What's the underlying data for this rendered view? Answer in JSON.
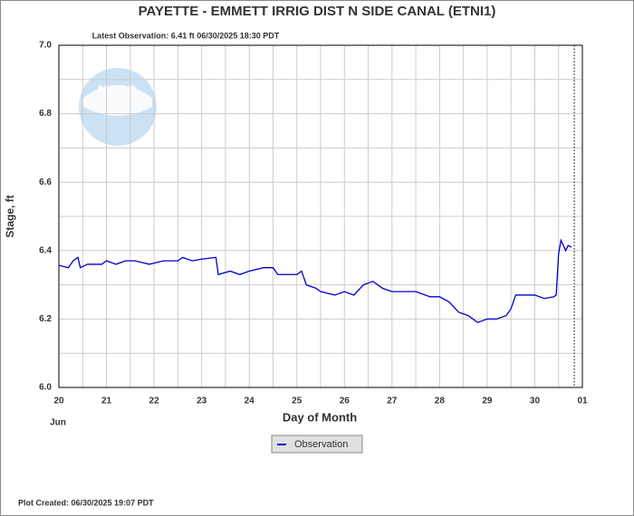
{
  "chart_data": {
    "type": "line",
    "title": "PAYETTE - EMMETT IRRIG DIST N SIDE CANAL  (ETNI1)",
    "subtitle": "Latest Observation: 6.41 ft 06/30/2025 18:30 PDT",
    "y_label": "Stage, ft",
    "x_label": "Day of Month",
    "x_month_label": "Jun",
    "footer": "Plot Created: 06/30/2025 19:07 PDT",
    "logo_text": "NOAA",
    "xlim": [
      20,
      31
    ],
    "xticks": [
      20,
      21,
      22,
      23,
      24,
      25,
      26,
      27,
      28,
      29,
      30,
      {
        "value": 31,
        "label": "01"
      }
    ],
    "x_minor_ticks": [
      20.5,
      21.5,
      22.5,
      23.5,
      24.5,
      25.5,
      26.5,
      27.5,
      28.5,
      29.5,
      30.5
    ],
    "ylim": [
      6.0,
      7.0
    ],
    "yticks": [
      {
        "value": 6.0,
        "label": "6.0"
      },
      6.2,
      6.4,
      6.6,
      6.8,
      {
        "value": 7.0,
        "label": "7.0"
      }
    ],
    "y_minor_ticks": [
      6.1,
      6.3,
      6.5,
      6.7,
      6.9
    ],
    "grid": true,
    "now_line_x": 30.83,
    "legend": "bottom-center",
    "x": [
      20.0,
      20.2,
      20.3,
      20.4,
      20.45,
      20.6,
      20.9,
      21.0,
      21.2,
      21.4,
      21.6,
      21.9,
      22.2,
      22.5,
      22.6,
      22.8,
      23.0,
      23.3,
      23.35,
      23.6,
      23.8,
      24.0,
      24.3,
      24.5,
      24.6,
      24.8,
      25.0,
      25.1,
      25.2,
      25.4,
      25.5,
      25.8,
      26.0,
      26.2,
      26.4,
      26.6,
      26.8,
      27.0,
      27.3,
      27.5,
      27.8,
      28.0,
      28.2,
      28.4,
      28.6,
      28.8,
      29.0,
      29.2,
      29.4,
      29.5,
      29.6,
      30.0,
      30.2,
      30.4,
      30.45,
      30.5,
      30.55,
      30.65,
      30.7,
      30.77
    ],
    "series": [
      {
        "name": "Observation",
        "color": "#0000cc",
        "values": [
          6.357,
          6.35,
          6.37,
          6.38,
          6.35,
          6.36,
          6.36,
          6.37,
          6.36,
          6.37,
          6.37,
          6.36,
          6.37,
          6.37,
          6.38,
          6.37,
          6.375,
          6.38,
          6.33,
          6.34,
          6.33,
          6.34,
          6.35,
          6.35,
          6.33,
          6.33,
          6.33,
          6.34,
          6.3,
          6.29,
          6.28,
          6.27,
          6.28,
          6.27,
          6.3,
          6.31,
          6.29,
          6.28,
          6.28,
          6.28,
          6.265,
          6.265,
          6.25,
          6.22,
          6.21,
          6.19,
          6.2,
          6.2,
          6.21,
          6.23,
          6.27,
          6.27,
          6.26,
          6.265,
          6.27,
          6.39,
          6.43,
          6.4,
          6.415,
          6.41
        ]
      }
    ]
  }
}
